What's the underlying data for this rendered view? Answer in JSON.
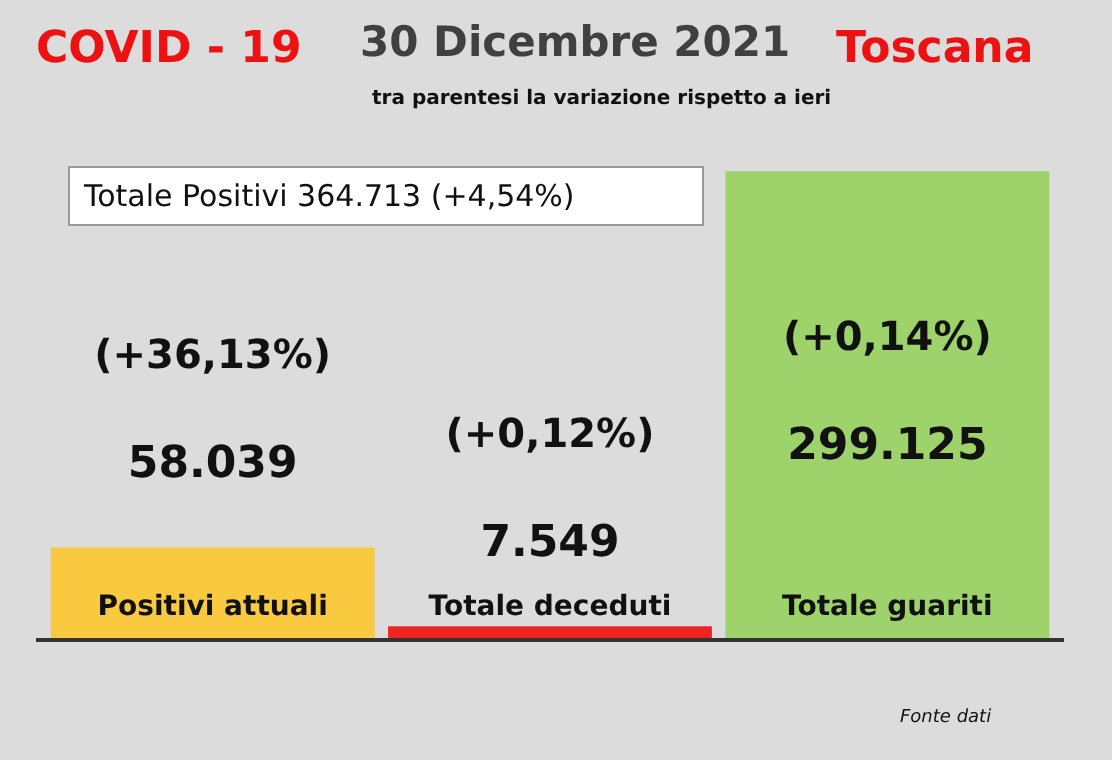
{
  "chart_data": {
    "type": "bar",
    "title": "30 Dicembre 2021",
    "subtitle": "tra parentesi la variazione rispetto a ieri",
    "annotations": [
      "COVID - 19",
      "Toscana",
      "Totale Positivi 364.713 (+4,54%)",
      "Fonte dati",
      "(+36,13%)",
      "(+0,12%)",
      "(+0,14%)"
    ],
    "categories": [
      "Positivi attuali",
      "Totale deceduti",
      "Totale guariti"
    ],
    "values": [
      58039,
      7549,
      299125
    ],
    "value_labels": [
      "58.039",
      "7.549",
      "299.125"
    ],
    "colors": [
      "#f9c93f",
      "#ee2424",
      "#9dd36a"
    ]
  }
}
